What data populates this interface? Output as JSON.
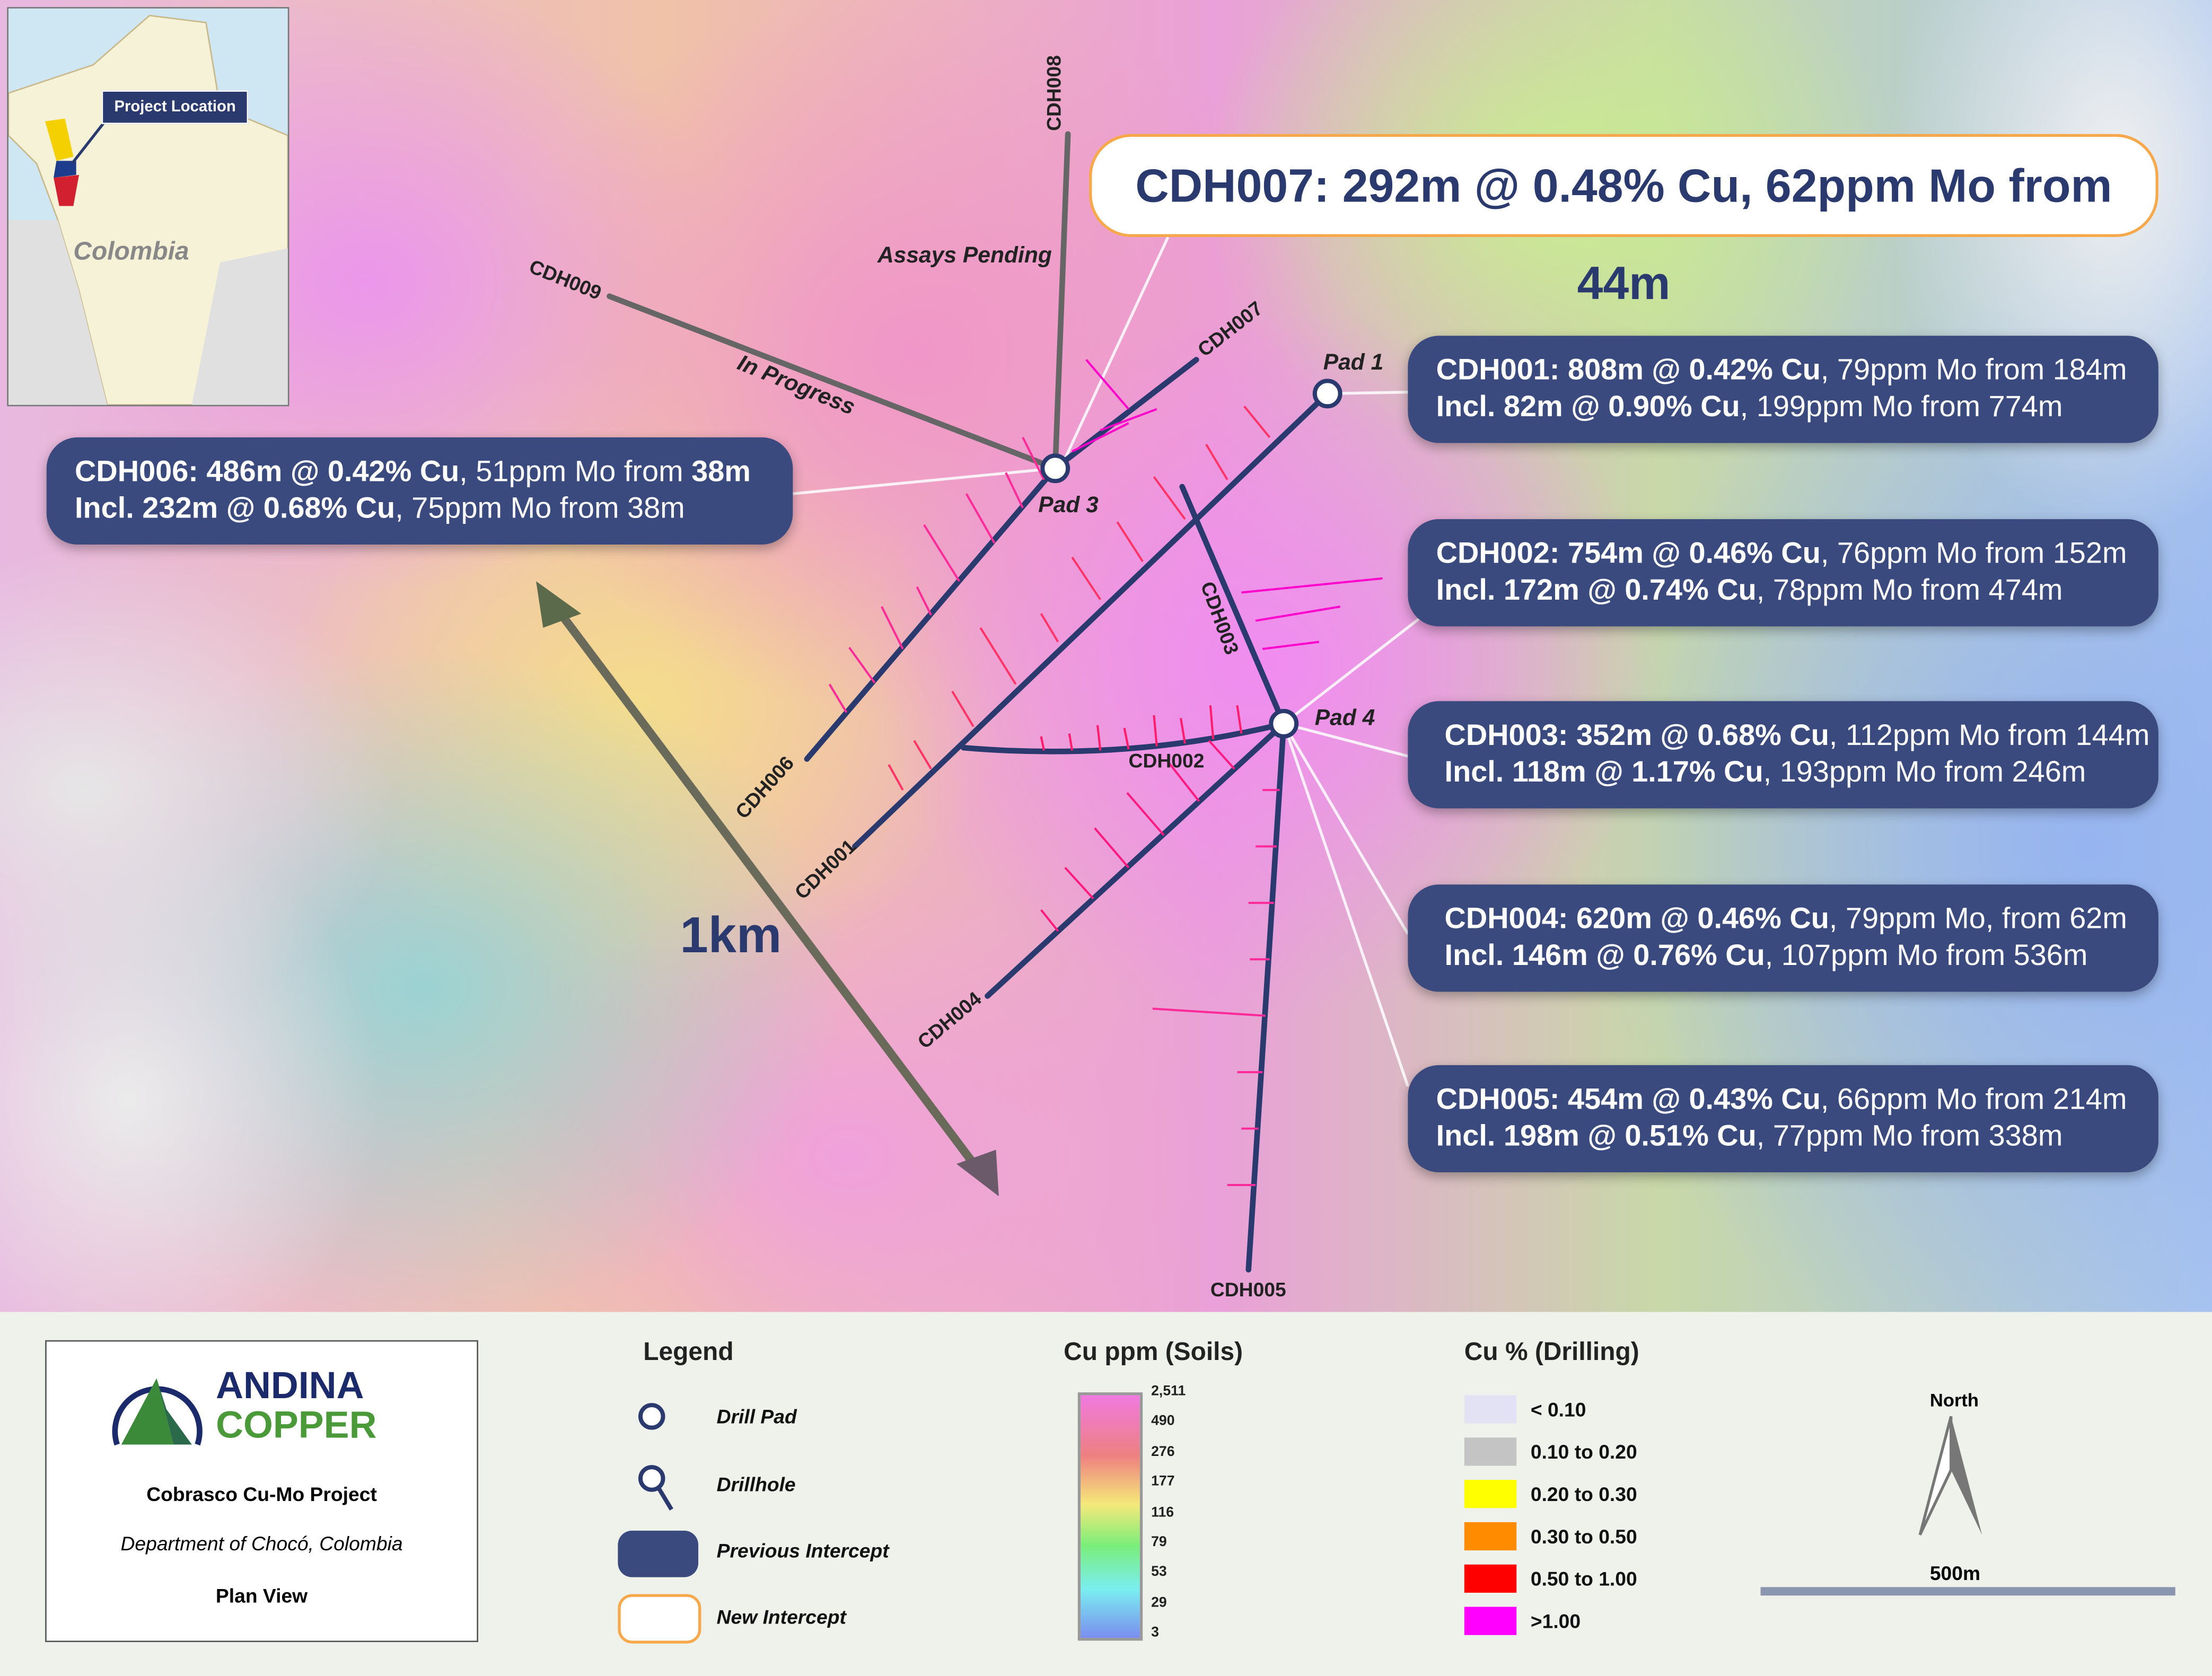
{
  "inset": {
    "country": "Colombia",
    "marker_label": "Project Location"
  },
  "new_intercept": {
    "text": "CDH007: 292m @ 0.48% Cu, 62ppm Mo from 44m"
  },
  "callouts": {
    "cdh001": {
      "l1b": "CDH001: 808m @ 0.42% Cu",
      "l1n": ", 79ppm Mo from 184m",
      "l2b": "Incl. 82m @ 0.90% Cu",
      "l2n": ", 199ppm Mo from 774m"
    },
    "cdh002": {
      "l1b": "CDH002: 754m @ 0.46% Cu",
      "l1n": ", 76ppm Mo from 152m",
      "l2b": "Incl. 172m @ 0.74% Cu",
      "l2n": ", 78ppm Mo from 474m"
    },
    "cdh003": {
      "l1b": "CDH003: 352m @ 0.68% Cu",
      "l1n": ", 112ppm Mo from 144m",
      "l2b": "Incl. 118m @ 1.17% Cu",
      "l2n": ", 193ppm Mo from 246m"
    },
    "cdh004": {
      "l1b": "CDH004: 620m @ 0.46% Cu",
      "l1n": ", 79ppm Mo, from 62m",
      "l2b": "Incl. 146m @ 0.76% Cu",
      "l2n": ", 107ppm Mo from 536m"
    },
    "cdh005": {
      "l1b": "CDH005: 454m @ 0.43% Cu",
      "l1n": ", 66ppm Mo from 214m",
      "l2b": "Incl. 198m @ 0.51% Cu",
      "l2n": ", 77ppm Mo from 338m"
    },
    "cdh006": {
      "l1b": "CDH006: 486m @ 0.42% Cu",
      "l1n": ", 51ppm Mo from ",
      "l1b2": "38m",
      "l2b": "Incl. 232m @ 0.68% Cu",
      "l2n": ", 75ppm Mo from 38m"
    }
  },
  "pads": {
    "pad1": "Pad 1",
    "pad3": "Pad 3",
    "pad4": "Pad 4"
  },
  "holes": {
    "cdh001": "CDH001",
    "cdh002": "CDH002",
    "cdh003": "CDH003",
    "cdh004": "CDH004",
    "cdh005": "CDH005",
    "cdh006": "CDH006",
    "cdh007": "CDH007",
    "cdh008": "CDH008",
    "cdh009": "CDH009"
  },
  "status": {
    "pending": "Assays Pending",
    "progress": "In Progress"
  },
  "scale_arrow": "1km",
  "legend": {
    "company_line1": "ANDINA",
    "company_line2": "COPPER",
    "project": "Cobrasco Cu-Mo Project",
    "location": "Department of Chocó, Colombia",
    "view": "Plan View",
    "title": "Legend",
    "items": [
      "Drill Pad",
      "Drillhole",
      "Previous Intercept",
      "New Intercept"
    ],
    "soils_title": "Cu ppm (Soils)",
    "soils_ticks": [
      "2,511",
      "490",
      "276",
      "177",
      "116",
      "79",
      "53",
      "29",
      "3"
    ],
    "drill_title": "Cu % (Drilling)",
    "drill_classes": [
      {
        "label": "< 0.10",
        "color": "#e2e2f4"
      },
      {
        "label": "0.10 to 0.20",
        "color": "#c4c4c4"
      },
      {
        "label": "0.20 to 0.30",
        "color": "#ffff00"
      },
      {
        "label": "0.30 to 0.50",
        "color": "#ff8c00"
      },
      {
        "label": "0.50 to 1.00",
        "color": "#ff0000"
      },
      {
        "label": ">1.00",
        "color": "#ff00ff"
      }
    ],
    "north": "North",
    "scale_bar": "500m"
  },
  "colors": {
    "previous": "#3a4a7e",
    "new_border": "#f6a84a",
    "hole": "#2a3a6e"
  }
}
